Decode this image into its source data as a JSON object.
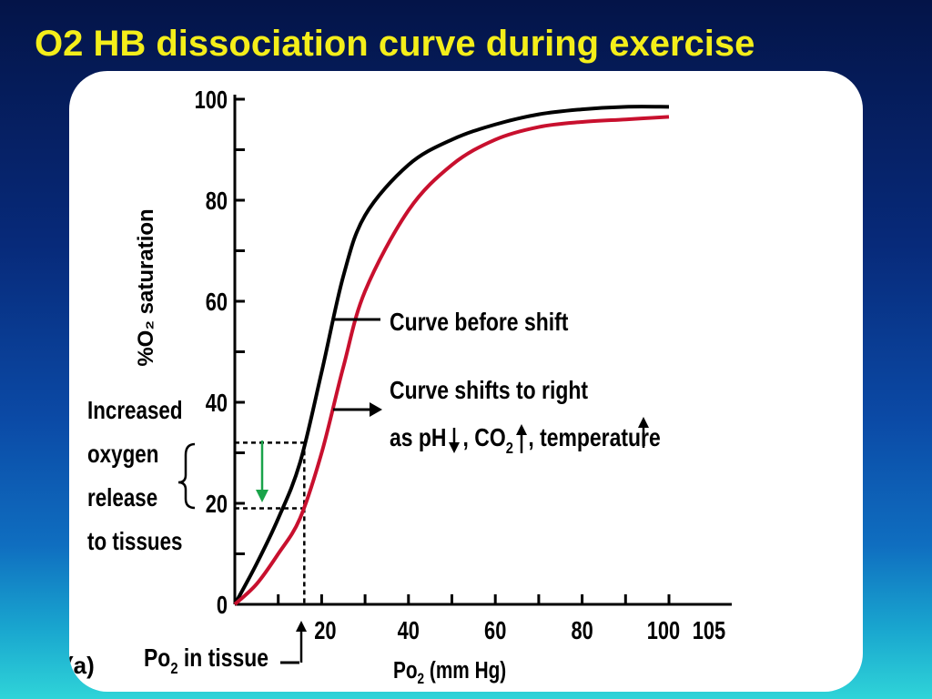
{
  "slide": {
    "title": "O2 HB dissociation curve during exercise",
    "colors": {
      "title": "#f4ee1a",
      "before": "#000000",
      "shifted": "#c8102e",
      "release_arrow": "#1aa34a"
    }
  },
  "chart_data": {
    "type": "line",
    "xlabel": "Po₂ (mm Hg)",
    "ylabel": "%O₂ saturation",
    "xlim": [
      0,
      105
    ],
    "ylim": [
      0,
      100
    ],
    "x_ticks": [
      20,
      40,
      60,
      80,
      100,
      105
    ],
    "y_ticks": [
      0,
      20,
      40,
      60,
      80,
      100
    ],
    "grid": false,
    "series": [
      {
        "name": "Curve before shift",
        "color": "#000000",
        "x": [
          0,
          5,
          10,
          15,
          20,
          25,
          30,
          40,
          50,
          60,
          70,
          80,
          90,
          100
        ],
        "y": [
          0,
          8,
          17,
          28,
          46,
          65,
          77,
          87,
          92,
          95,
          97,
          98,
          98.5,
          98.5
        ]
      },
      {
        "name": "Curve shifts to right",
        "color": "#c8102e",
        "x": [
          0,
          5,
          10,
          15,
          20,
          25,
          30,
          40,
          50,
          60,
          70,
          80,
          90,
          100
        ],
        "y": [
          0,
          4,
          10,
          17,
          30,
          47,
          62,
          78,
          87,
          92,
          94.5,
          95.5,
          96,
          96.5
        ]
      }
    ],
    "annotations": {
      "tissue_po2": 16,
      "sat_before": 32,
      "sat_after": 19,
      "label_before": "Curve before shift",
      "label_shift_line1": "Curve shifts to right",
      "label_shift_line2": "as pH, CO₂, temperature",
      "label_shift_line2_parts": [
        "as pH",
        ", CO",
        "2",
        ", temperature"
      ],
      "release_label_lines": [
        "Increased",
        "oxygen",
        "release",
        "to tissues"
      ],
      "po2_tissue_label_parts": [
        "Po",
        "2",
        " in tissue"
      ],
      "panel_tag": "(a)"
    }
  }
}
